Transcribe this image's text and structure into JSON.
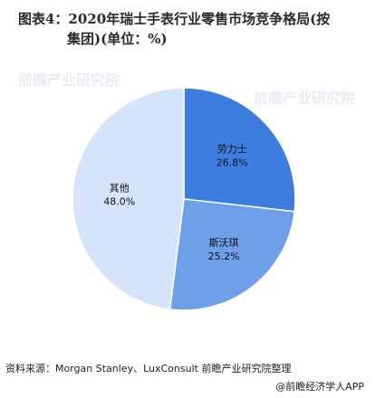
{
  "title_line1": "图表4：2020年瑞士手表行业零售市场竞争格局(按",
  "title_line2": "集团)(单位：%)",
  "source": "资料来源：Morgan Stanley、LuxConsult 前瞻产业研究院整理",
  "brand": "@前瞻经济学人APP",
  "watermark": "前瞻产业研究院",
  "chart_data": {
    "type": "pie",
    "slices": [
      {
        "label": "劳力士",
        "value": 26.8,
        "value_text": "26.8%",
        "color": "#3d7de0"
      },
      {
        "label": "斯沃琪",
        "value": 25.2,
        "value_text": "25.2%",
        "color": "#6ea0ea"
      },
      {
        "label": "其他",
        "value": 48.0,
        "value_text": "48.0%",
        "color": "#d6e4fb"
      }
    ]
  }
}
